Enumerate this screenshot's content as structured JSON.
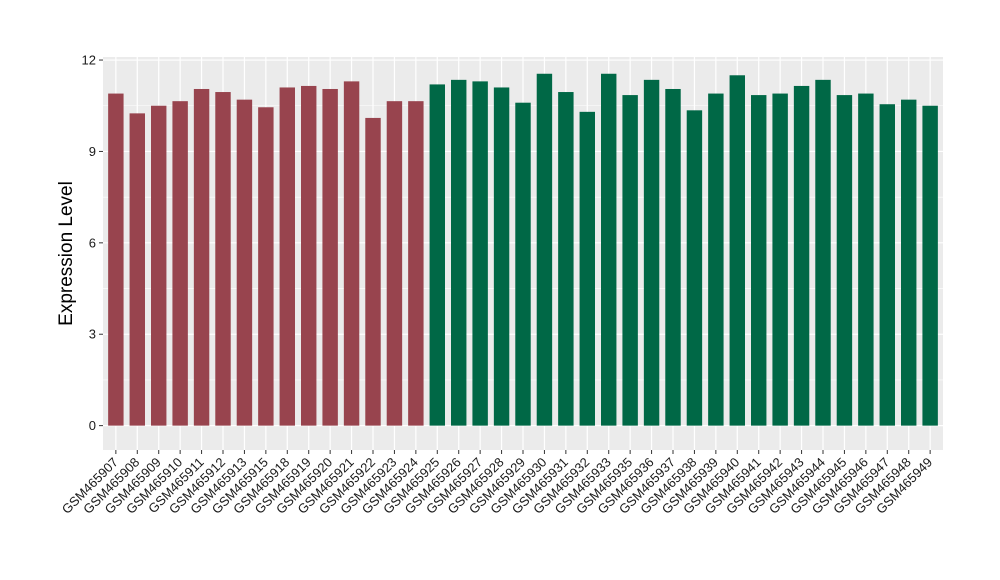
{
  "chart_data": {
    "type": "bar",
    "title": "",
    "xlabel": "",
    "ylabel": "Expression Level",
    "ylim": [
      -0.8,
      12.1
    ],
    "yticks": [
      0,
      3,
      6,
      9,
      12
    ],
    "grid": true,
    "legend": "none",
    "panel_background": "#EBEBEB",
    "grid_color": "#FFFFFF",
    "categories": [
      "GSM465907",
      "GSM465908",
      "GSM465909",
      "GSM465910",
      "GSM465911",
      "GSM465912",
      "GSM465913",
      "GSM465915",
      "GSM465918",
      "GSM465919",
      "GSM465920",
      "GSM465921",
      "GSM465922",
      "GSM465923",
      "GSM465924",
      "GSM465925",
      "GSM465926",
      "GSM465927",
      "GSM465928",
      "GSM465929",
      "GSM465930",
      "GSM465931",
      "GSM465932",
      "GSM465933",
      "GSM465935",
      "GSM465936",
      "GSM465937",
      "GSM465938",
      "GSM465939",
      "GSM465940",
      "GSM465941",
      "GSM465942",
      "GSM465943",
      "GSM465944",
      "GSM465945",
      "GSM465946",
      "GSM465947",
      "GSM465948",
      "GSM465949"
    ],
    "values": [
      10.9,
      10.25,
      10.5,
      10.65,
      11.05,
      10.95,
      10.7,
      10.45,
      11.1,
      11.15,
      11.05,
      11.3,
      10.1,
      10.65,
      10.65,
      11.2,
      11.35,
      11.3,
      11.1,
      10.6,
      11.55,
      10.95,
      10.3,
      11.55,
      10.85,
      11.35,
      11.05,
      10.35,
      10.9,
      11.5,
      10.85,
      10.9,
      11.15,
      11.35,
      10.85,
      10.9,
      10.55,
      10.7,
      10.5
    ],
    "bar_colors": [
      "#98444E",
      "#98444E",
      "#98444E",
      "#98444E",
      "#98444E",
      "#98444E",
      "#98444E",
      "#98444E",
      "#98444E",
      "#98444E",
      "#98444E",
      "#98444E",
      "#98444E",
      "#98444E",
      "#98444E",
      "#006846",
      "#006846",
      "#006846",
      "#006846",
      "#006846",
      "#006846",
      "#006846",
      "#006846",
      "#006846",
      "#006846",
      "#006846",
      "#006846",
      "#006846",
      "#006846",
      "#006846",
      "#006846",
      "#006846",
      "#006846",
      "#006846",
      "#006846",
      "#006846",
      "#006846",
      "#006846",
      "#006846"
    ]
  }
}
